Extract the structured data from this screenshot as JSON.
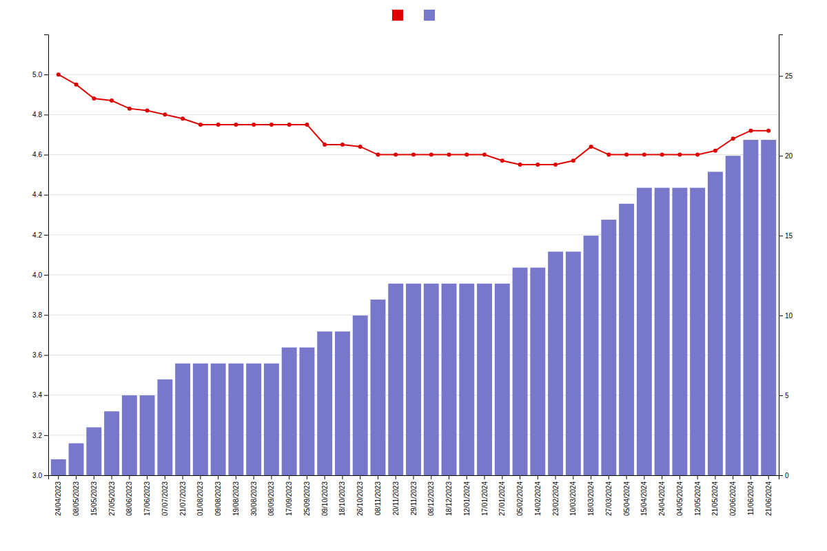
{
  "chart_data": {
    "type": "bar",
    "categories": [
      "24/04/2023",
      "08/05/2023",
      "15/05/2023",
      "27/05/2023",
      "08/06/2023",
      "17/06/2023",
      "07/07/2023",
      "21/07/2023",
      "01/08/2023",
      "09/08/2023",
      "19/08/2023",
      "30/08/2023",
      "08/09/2023",
      "17/09/2023",
      "25/09/2023",
      "09/10/2023",
      "18/10/2023",
      "26/10/2023",
      "08/11/2023",
      "20/11/2023",
      "29/11/2023",
      "08/12/2023",
      "18/12/2023",
      "12/01/2024",
      "17/01/2024",
      "27/01/2024",
      "05/02/2024",
      "14/02/2024",
      "23/02/2024",
      "10/03/2024",
      "18/03/2024",
      "27/03/2024",
      "05/04/2024",
      "15/04/2024",
      "24/04/2024",
      "04/05/2024",
      "12/05/2024",
      "21/05/2024",
      "02/06/2024",
      "11/06/2024",
      "21/06/2024"
    ],
    "series": [
      {
        "type": "line",
        "color": "#dd0000",
        "marker": "circle",
        "values": [
          5.0,
          4.95,
          4.88,
          4.87,
          4.83,
          4.82,
          4.8,
          4.78,
          4.75,
          4.75,
          4.75,
          4.75,
          4.75,
          4.75,
          4.75,
          4.65,
          4.65,
          4.64,
          4.6,
          4.6,
          4.6,
          4.6,
          4.6,
          4.6,
          4.6,
          4.57,
          4.55,
          4.55,
          4.55,
          4.57,
          4.64,
          4.6,
          4.6,
          4.6,
          4.6,
          4.6,
          4.6,
          4.62,
          4.68,
          4.72,
          4.72
        ]
      },
      {
        "type": "bar",
        "color": "#7777cc",
        "axis": "y2",
        "values": [
          1,
          2,
          3,
          4,
          5,
          5,
          6,
          7,
          7,
          7,
          7,
          7,
          7,
          8,
          8,
          9,
          9,
          10,
          11,
          12,
          12,
          12,
          12,
          12,
          12,
          12,
          13,
          13,
          14,
          14,
          15,
          16,
          17,
          18,
          18,
          18,
          18,
          19,
          20,
          21,
          21
        ]
      }
    ],
    "ylim": [
      3.0,
      5.2
    ],
    "yticks": [
      {
        "value": 3.0,
        "label": "3.0"
      },
      3.2,
      3.4,
      3.6,
      3.8,
      {
        "value": 4.0,
        "label": "4.0"
      },
      4.2,
      4.4,
      4.6,
      4.8,
      {
        "value": 5.0,
        "label": "5.0"
      }
    ],
    "y2lim": [
      0,
      27.6
    ],
    "y2ticks": [
      0,
      5,
      10,
      15,
      20,
      25
    ],
    "grid": true,
    "legend": "top"
  }
}
